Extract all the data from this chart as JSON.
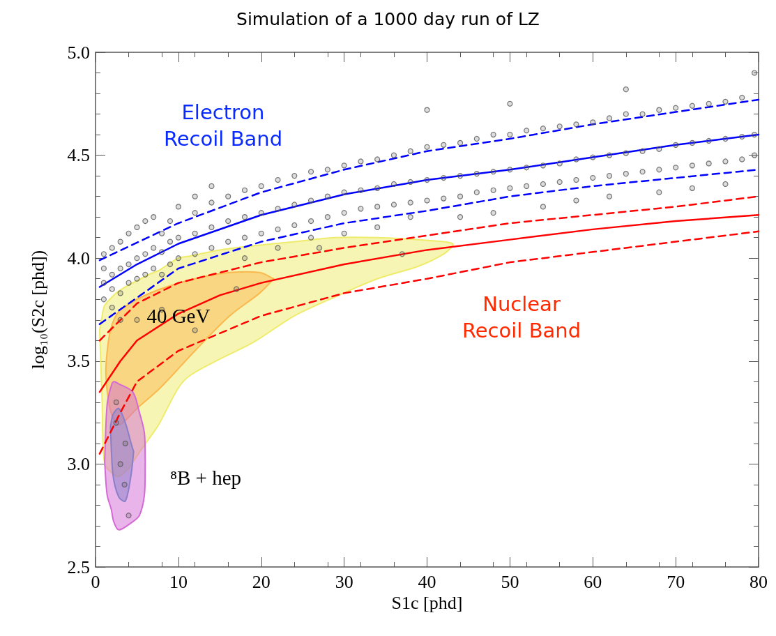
{
  "chart_data": {
    "type": "scatter",
    "title": "Simulation of a 1000 day run of LZ",
    "xlabel": "S1c [phd]",
    "ylabel": "log₁₀(S2c [phd])",
    "xlim": [
      0,
      80
    ],
    "xticks": [
      0,
      10,
      20,
      30,
      40,
      50,
      60,
      70,
      80
    ],
    "ylim": [
      2.5,
      5.0
    ],
    "yticks": [
      {
        "value": 2.5,
        "label": "2.5"
      },
      {
        "value": 3,
        "label": "3.0"
      },
      {
        "value": 3.5,
        "label": "3.5"
      },
      {
        "value": 4,
        "label": "4.0"
      },
      {
        "value": 4.5,
        "label": "4.5"
      },
      {
        "value": 5,
        "label": "5.0"
      }
    ],
    "annotations": [
      "Electron\nRecoil Band",
      "Nuclear\nRecoil Band",
      {
        "text": "40 GeV",
        "x": 10,
        "y": 3.72
      },
      "⁸B + hep"
    ],
    "series": [
      {
        "marker": "circle",
        "color": "#555555",
        "x": [
          1,
          1,
          1,
          1,
          2,
          2,
          2,
          2,
          3,
          3,
          3,
          3,
          4,
          4,
          4,
          5,
          5,
          5,
          6,
          6,
          6,
          7,
          7,
          7,
          8,
          8,
          8,
          9,
          9,
          9,
          10,
          10,
          10,
          12,
          12,
          12,
          12,
          14,
          14,
          14,
          14,
          16,
          16,
          16,
          18,
          18,
          18,
          18,
          20,
          20,
          20,
          22,
          22,
          22,
          22,
          24,
          24,
          24,
          26,
          26,
          26,
          26,
          28,
          28,
          28,
          30,
          30,
          30,
          30,
          32,
          32,
          32,
          34,
          34,
          34,
          34,
          36,
          36,
          36,
          38,
          38,
          38,
          38,
          40,
          40,
          40,
          40,
          42,
          42,
          42,
          44,
          44,
          44,
          44,
          46,
          46,
          46,
          48,
          48,
          48,
          48,
          50,
          50,
          50,
          50,
          52,
          52,
          52,
          54,
          54,
          54,
          54,
          56,
          56,
          56,
          58,
          58,
          58,
          58,
          60,
          60,
          60,
          62,
          62,
          62,
          62,
          64,
          64,
          64,
          64,
          66,
          66,
          66,
          68,
          68,
          68,
          68,
          70,
          70,
          70,
          72,
          72,
          72,
          72,
          74,
          74,
          74,
          76,
          76,
          76,
          76,
          78,
          78,
          78,
          79.5,
          79.5,
          79.5,
          2.5,
          3,
          3.5,
          4,
          2.5,
          3.6,
          5,
          8,
          12,
          17,
          27,
          37
        ],
        "values": [
          3.88,
          3.95,
          3.8,
          4.02,
          3.92,
          3.85,
          4.05,
          3.76,
          3.95,
          4.08,
          3.83,
          3.7,
          3.97,
          4.12,
          3.88,
          4.0,
          3.9,
          4.15,
          4.02,
          3.92,
          4.18,
          4.05,
          3.95,
          4.2,
          4.03,
          4.12,
          3.92,
          4.08,
          4.18,
          3.97,
          4.1,
          4.0,
          4.25,
          4.12,
          4.02,
          4.22,
          4.3,
          4.15,
          4.05,
          4.27,
          4.35,
          4.18,
          4.08,
          4.3,
          4.2,
          4.1,
          4.33,
          4.0,
          4.22,
          4.12,
          4.35,
          4.24,
          4.14,
          4.38,
          4.05,
          4.26,
          4.16,
          4.4,
          4.28,
          4.18,
          4.42,
          4.1,
          4.3,
          4.2,
          4.43,
          4.32,
          4.22,
          4.45,
          4.12,
          4.33,
          4.24,
          4.47,
          4.34,
          4.25,
          4.48,
          4.15,
          4.36,
          4.26,
          4.5,
          4.37,
          4.27,
          4.52,
          4.2,
          4.38,
          4.28,
          4.54,
          4.72,
          4.39,
          4.29,
          4.55,
          4.4,
          4.3,
          4.56,
          4.2,
          4.41,
          4.32,
          4.58,
          4.42,
          4.33,
          4.6,
          4.22,
          4.43,
          4.34,
          4.6,
          4.75,
          4.44,
          4.35,
          4.62,
          4.45,
          4.36,
          4.63,
          4.25,
          4.46,
          4.37,
          4.64,
          4.48,
          4.38,
          4.65,
          4.28,
          4.49,
          4.39,
          4.66,
          4.5,
          4.4,
          4.68,
          4.3,
          4.51,
          4.41,
          4.7,
          4.82,
          4.52,
          4.42,
          4.7,
          4.53,
          4.43,
          4.72,
          4.32,
          4.55,
          4.44,
          4.73,
          4.56,
          4.45,
          4.74,
          4.34,
          4.57,
          4.46,
          4.75,
          4.58,
          4.47,
          4.76,
          4.36,
          4.59,
          4.48,
          4.78,
          4.6,
          4.5,
          4.9,
          3.2,
          3.0,
          2.9,
          2.75,
          3.3,
          3.1,
          3.7,
          3.75,
          3.65,
          3.85,
          4.05,
          4.02
        ]
      },
      {
        "type": "line",
        "color": "#0000ff",
        "line_style": "solid",
        "x": [
          0.5,
          5,
          10,
          20,
          30,
          40,
          50,
          60,
          70,
          80
        ],
        "values": [
          3.86,
          3.97,
          4.07,
          4.21,
          4.31,
          4.38,
          4.43,
          4.49,
          4.55,
          4.6
        ]
      },
      {
        "type": "line",
        "color": "#0000ff",
        "line_style": "dashed",
        "x": [
          0.5,
          10,
          20,
          30,
          40,
          50,
          60,
          70,
          80
        ],
        "values": [
          3.99,
          4.17,
          4.32,
          4.43,
          4.52,
          4.58,
          4.65,
          4.71,
          4.77
        ]
      },
      {
        "type": "line",
        "color": "#0000ff",
        "line_style": "dashed",
        "x": [
          0.5,
          10,
          20,
          30,
          40,
          50,
          60,
          70,
          80
        ],
        "values": [
          3.68,
          3.95,
          4.08,
          4.17,
          4.23,
          4.3,
          4.35,
          4.39,
          4.43
        ]
      },
      {
        "type": "line",
        "color": "#ff0000",
        "line_style": "solid",
        "x": [
          0.5,
          3,
          5,
          10,
          15,
          20,
          30,
          40,
          50,
          60,
          70,
          80
        ],
        "values": [
          3.35,
          3.5,
          3.6,
          3.73,
          3.82,
          3.88,
          3.97,
          4.04,
          4.09,
          4.14,
          4.18,
          4.21
        ]
      },
      {
        "type": "line",
        "color": "#ff0000",
        "line_style": "dashed",
        "x": [
          0.5,
          5,
          10,
          20,
          30,
          40,
          50,
          60,
          70,
          80
        ],
        "values": [
          3.6,
          3.78,
          3.88,
          3.98,
          4.05,
          4.11,
          4.17,
          4.21,
          4.25,
          4.3
        ]
      },
      {
        "type": "line",
        "color": "#ff0000",
        "line_style": "dashed",
        "x": [
          0.5,
          3,
          5,
          10,
          20,
          30,
          40,
          50,
          60,
          70,
          80
        ],
        "values": [
          3.05,
          3.25,
          3.4,
          3.55,
          3.72,
          3.83,
          3.9,
          3.98,
          4.03,
          4.08,
          4.13
        ]
      },
      {
        "type": "area",
        "color": "#eeec6a",
        "x": [
          0.5,
          0.8,
          1.1,
          2.2,
          2.8,
          4,
          5,
          6.4,
          7.6,
          10,
          11.4,
          15,
          19,
          24,
          28.8,
          34,
          38.9,
          42,
          43.1
        ],
        "values": [
          null,
          null,
          null,
          null,
          null,
          null,
          null,
          null,
          null,
          null,
          null,
          null,
          null,
          null,
          null,
          null,
          null,
          null,
          null
        ],
        "upper": [
          3.65,
          3.72,
          3.77,
          3.82,
          3.84,
          3.87,
          3.89,
          3.92,
          3.94,
          4.0,
          4.01,
          4.04,
          4.06,
          4.08,
          4.1,
          4.1,
          4.09,
          4.08,
          4.07
        ],
        "lower": [
          3.65,
          3.3,
          3.0,
          2.95,
          2.94,
          2.98,
          3.04,
          3.12,
          3.19,
          3.37,
          3.43,
          3.51,
          3.59,
          3.72,
          3.81,
          3.9,
          3.96,
          4.02,
          4.06
        ]
      },
      {
        "type": "area",
        "color": "#fbb84e",
        "x": [
          1.3,
          1.8,
          2.8,
          5,
          7.8,
          12,
          16.2,
          19.8,
          21.5
        ],
        "values": [
          null,
          null,
          null,
          null,
          null,
          null,
          null,
          null,
          null
        ],
        "upper": [
          3.5,
          3.65,
          3.74,
          3.8,
          3.85,
          3.9,
          3.93,
          3.93,
          3.9
        ],
        "lower": [
          3.4,
          3.26,
          3.19,
          3.27,
          3.37,
          3.55,
          3.72,
          3.83,
          3.9
        ]
      },
      {
        "type": "area",
        "color": "#d46ad6",
        "x": [
          1.1,
          1.4,
          1.9,
          2.2,
          2.8,
          4.5,
          5.3,
          5.9,
          6
        ],
        "values": [
          null,
          null,
          null,
          null,
          null,
          null,
          null,
          null,
          null
        ],
        "upper": [
          3.01,
          3.29,
          3.38,
          3.4,
          3.39,
          3.35,
          3.25,
          3.15,
          3.01
        ],
        "lower": [
          3.01,
          2.85,
          2.78,
          2.72,
          2.68,
          2.72,
          2.75,
          2.85,
          3.01
        ]
      },
      {
        "type": "area",
        "color": "#8a7fc8",
        "x": [
          1.8,
          2.1,
          2.8,
          3.6,
          4.3,
          4.6
        ],
        "values": [
          null,
          null,
          null,
          null,
          null,
          null
        ],
        "upper": [
          3.18,
          3.24,
          3.27,
          3.2,
          3.1,
          3.06
        ],
        "lower": [
          3.18,
          2.95,
          2.84,
          2.82,
          2.95,
          3.06
        ]
      }
    ]
  }
}
